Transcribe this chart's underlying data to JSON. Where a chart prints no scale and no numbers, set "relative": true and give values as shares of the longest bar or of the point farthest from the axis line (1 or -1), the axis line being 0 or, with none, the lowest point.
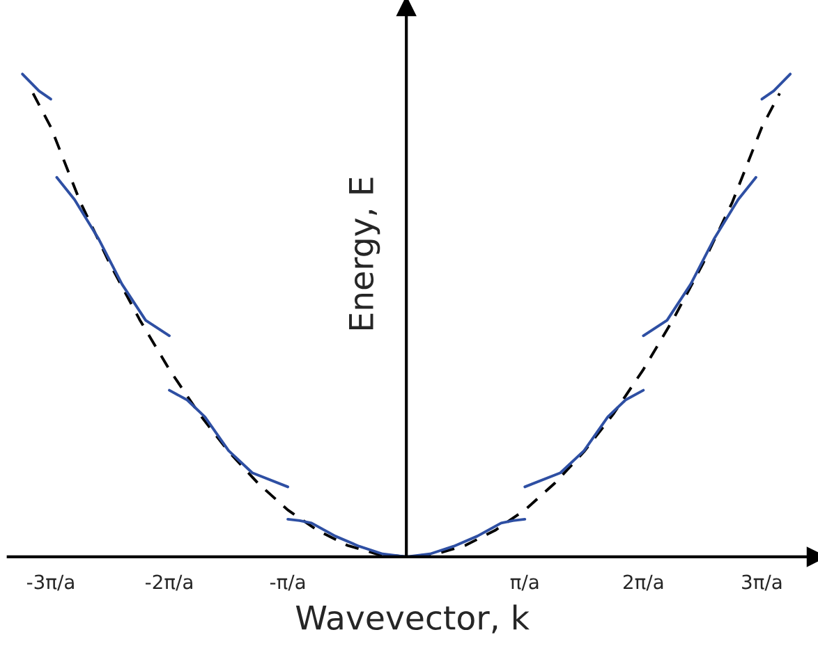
{
  "chart_data": {
    "type": "line",
    "relative": true,
    "xlabel": "Wavevector, k",
    "ylabel": "Energy, E",
    "xlim": [
      -3.36,
      3.46
    ],
    "xticks": [
      {
        "value": -3,
        "label": "-3π/a"
      },
      {
        "value": -2,
        "label": "-2π/a"
      },
      {
        "value": -1,
        "label": "-π/a"
      },
      {
        "value": 1,
        "label": "π/a"
      },
      {
        "value": 2,
        "label": "2π/a"
      },
      {
        "value": 3,
        "label": "3π/a"
      }
    ],
    "series": [
      {
        "color": "#000000",
        "line_style": "dashed",
        "x": [
          -3.15,
          -3,
          -2.75,
          -2.5,
          -2.25,
          -2,
          -1.75,
          -1.5,
          -1.25,
          -1,
          -0.75,
          -0.5,
          -0.25,
          0,
          0.25,
          0.5,
          0.75,
          1,
          1.25,
          1.5,
          1.75,
          2,
          2.25,
          2.5,
          2.75,
          3,
          3.15
        ],
        "values": [
          0.96,
          0.89,
          0.734,
          0.606,
          0.491,
          0.388,
          0.297,
          0.218,
          0.152,
          0.097,
          0.055,
          0.024,
          0.006,
          0,
          0.006,
          0.024,
          0.055,
          0.097,
          0.152,
          0.218,
          0.297,
          0.388,
          0.491,
          0.606,
          0.734,
          0.89,
          0.96
        ]
      },
      {
        "color": "#2e4fa3",
        "line_style": "solid",
        "x": [
          -1,
          -0.9,
          -0.8,
          -0.6,
          -0.4,
          -0.2,
          0,
          0.2,
          0.4,
          0.6,
          0.8,
          0.9,
          1
        ],
        "values": [
          0.078,
          0.075,
          0.07,
          0.043,
          0.022,
          0.006,
          0,
          0.006,
          0.022,
          0.043,
          0.07,
          0.075,
          0.078
        ]
      },
      {
        "color": "#2e4fa3",
        "line_style": "solid",
        "x": [
          1,
          1.3,
          1.5,
          1.7,
          1.85,
          2
        ],
        "values": [
          0.145,
          0.174,
          0.22,
          0.29,
          0.325,
          0.345
        ]
      },
      {
        "color": "#2e4fa3",
        "line_style": "solid",
        "x": [
          -2,
          -1.85,
          -1.7,
          -1.5,
          -1.3,
          -1
        ],
        "values": [
          0.345,
          0.325,
          0.29,
          0.22,
          0.174,
          0.145
        ]
      },
      {
        "color": "#2e4fa3",
        "line_style": "solid",
        "x": [
          2,
          2.2,
          2.4,
          2.6,
          2.8,
          2.95
        ],
        "values": [
          0.458,
          0.49,
          0.565,
          0.66,
          0.74,
          0.786
        ]
      },
      {
        "color": "#2e4fa3",
        "line_style": "solid",
        "x": [
          -2.95,
          -2.8,
          -2.6,
          -2.4,
          -2.2,
          -2
        ],
        "values": [
          0.786,
          0.74,
          0.66,
          0.565,
          0.49,
          0.458
        ]
      },
      {
        "color": "#2e4fa3",
        "line_style": "solid",
        "x": [
          3,
          3.1,
          3.24
        ],
        "values": [
          0.948,
          0.965,
          1.0
        ]
      },
      {
        "color": "#2e4fa3",
        "line_style": "solid",
        "x": [
          -3.24,
          -3.1,
          -3
        ],
        "values": [
          1.0,
          0.965,
          0.948
        ]
      }
    ]
  }
}
